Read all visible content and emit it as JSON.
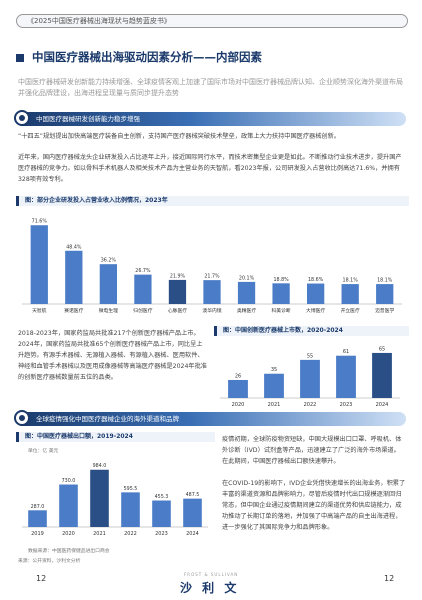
{
  "header": {
    "report_title": "《2025中国医疗器械出海现状与趋势蓝皮书》"
  },
  "page_title": "中国医疗器械出海驱动因素分析——内部因素",
  "intro": "中国医疗器械研发创新能力持续增强、全球疫情客观上加速了国际市场对中国医疗器械品牌认知、企业顺势深化海外渠道布局并强化品牌建设，出海进程呈现量与质同步提升态势",
  "section1": {
    "title": "中国医疗器械研发创新能力稳步增强",
    "para1": "“十四五”规划提出加快高端医疗装备自主创新，支持国产医疗器械突破技术壁垒，政策上大力扶持中国医疗器械创新。",
    "para2": "近年来，国内医疗器械龙头企业研发投入占比逐年上升，接近国际同行水平，而技术密集型企业更是如此。不断推动行业技术进步，提升国产医疗器械的竞争力。如以骨科手术机器人及相关技术产品为主营业务的天智航，看2023年报，公司研发投入占营收比例高达71.6%，并拥有328项有效专利。"
  },
  "chart1": {
    "label": "图：部分企业研发投入占营业收入比例情况，2023年"
  },
  "para_2018": "2018-2023年，国家药监局共批准217个创新医疗器械产品上市。2024年，国家药监局共批准65个创新医疗器械产品上市，同比呈上升趋势。有源手术器械、无源植入器械、有源植入器械、医用软件、神经和血管手术器械以及医用成像器械等高端医疗器械是2024年批准的创新医疗器械数量前五位的品类。",
  "chart2": {
    "label": "图：中国创新医疗器械上市数，2020-2024"
  },
  "section2": {
    "title": "全球疫情强化中国医疗器械企业的海外渠道和品牌"
  },
  "chart3": {
    "label": "图：中国医疗器械出口额，2019-2024",
    "unit": "单位：亿 美元"
  },
  "para_pandemic1": "疫情初期，全球防疫物资短缺，中国大规模出口口罩、呼吸机、体外诊断（IVD）试剂盒等产品，迅速建立了广泛的海外市场渠道。在此期间，中国医疗器械出口额快速攀升。",
  "para_pandemic2": "在COVID-19的影响下，IVD企业凭借快速增长的出海业务，积累了丰富的渠道资源和品牌影响力，尽管后疫情时代出口规模逐渐回归常态，但中国企业通过疫情期间建立的渠道优势和供应链能力，成功推动了长期订单的落地，并加强了中高端产品的自主出海进程，进一步强化了其国际竞争力和品牌形象。",
  "notes": {
    "source_note": "数据来源：中国医药保健品进出口商会",
    "source": "来源：公开资料，沙利文分析"
  },
  "footer": {
    "page_left": "12",
    "page_right": "12",
    "logo_en": "FROST & SULLIVAN",
    "logo_cn": "沙 利 文"
  },
  "chart_data": [
    {
      "type": "bar",
      "title": "图：部分企业研发投入占营业收入比例情况，2023年",
      "categories": [
        "天智航",
        "赛诺医疗",
        "微电生理",
        "归创医疗",
        "心脉医疗",
        "澳华内镜",
        "奥精医疗",
        "科美诊断",
        "大博医疗",
        "开立医疗",
        "迈普医学"
      ],
      "values": [
        71.6,
        48.4,
        36.2,
        26.7,
        21.9,
        21.7,
        20.1,
        18.8,
        18.6,
        18.1,
        18.1
      ],
      "value_suffix": "%",
      "ylim": [
        0,
        80
      ],
      "colors": [
        "#4a7cc7",
        "#4a7cc7",
        "#4a7cc7",
        "#4a7cc7",
        "#2a4f86",
        "#4a7cc7",
        "#4a7cc7",
        "#4a7cc7",
        "#4a7cc7",
        "#4a7cc7",
        "#4a7cc7"
      ]
    },
    {
      "type": "bar",
      "title": "图：中国创新医疗器械上市数，2020-2024",
      "categories": [
        "2020",
        "2021",
        "2022",
        "2023",
        "2024"
      ],
      "values": [
        26,
        35,
        55,
        61,
        65
      ],
      "ylim": [
        0,
        75
      ],
      "colors": [
        "#4a7cc7",
        "#4a7cc7",
        "#4a7cc7",
        "#4a7cc7",
        "#2a4f86"
      ]
    },
    {
      "type": "bar",
      "title": "图：中国医疗器械出口额，2019-2024",
      "ylabel": "单位：亿 美元",
      "categories": [
        "2019",
        "2020",
        "2021",
        "2022",
        "2023",
        "2024"
      ],
      "values": [
        287.0,
        730.0,
        984.0,
        595.5,
        455.3,
        487.5
      ],
      "ylim": [
        0,
        1100
      ],
      "colors": [
        "#4a7cc7",
        "#4a7cc7",
        "#2a4f86",
        "#4a7cc7",
        "#4a7cc7",
        "#4a7cc7"
      ]
    }
  ]
}
